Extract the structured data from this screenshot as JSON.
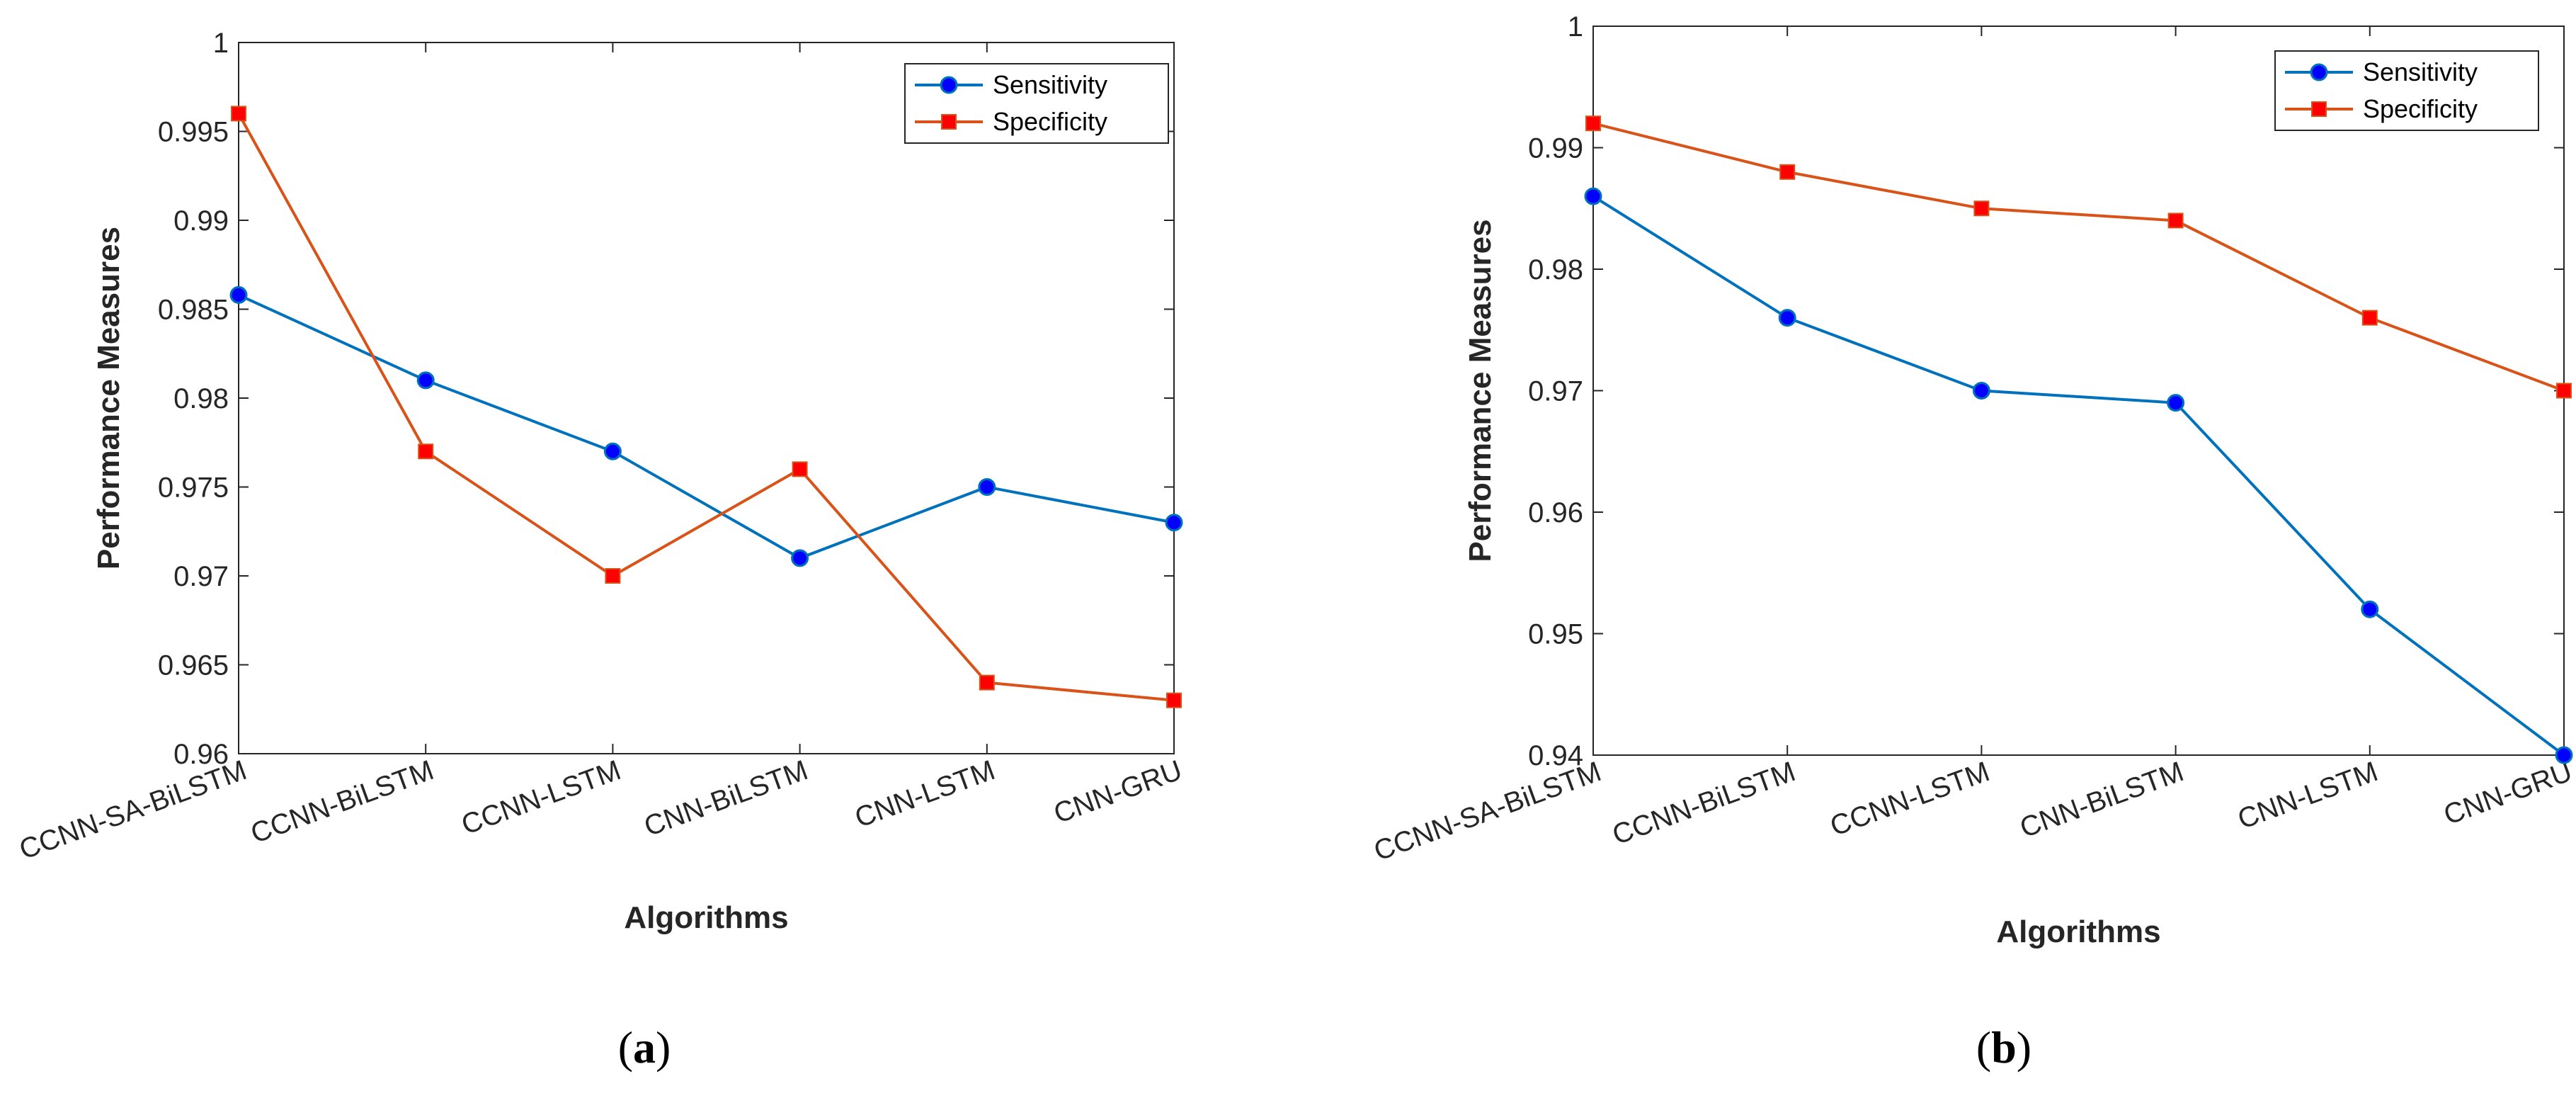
{
  "colors": {
    "sensitivity_line": "#0072BD",
    "sensitivity_marker": "#0000FF",
    "specificity_line": "#D95319",
    "specificity_marker": "#FF0000",
    "axis": "#262626"
  },
  "chart_data": [
    {
      "type": "line",
      "panel": {
        "open": "(",
        "letter": "a",
        "close": ")"
      },
      "xlabel": "Algorithms",
      "ylabel": "Performance Measures",
      "categories": [
        "CCNN-SA-BiLSTM",
        "CCNN-BiLSTM",
        "CCNN-LSTM",
        "CNN-BiLSTM",
        "CNN-LSTM",
        "CNN-GRU"
      ],
      "ylim": [
        0.96,
        1
      ],
      "yticks": [
        "0.96",
        "0.965",
        "0.97",
        "0.975",
        "0.98",
        "0.985",
        "0.99",
        "0.995",
        "1"
      ],
      "legend_position": "top-right",
      "series": [
        {
          "name": "Sensitivity",
          "marker": "circle",
          "values": [
            0.9858,
            0.981,
            0.977,
            0.971,
            0.975,
            0.973
          ]
        },
        {
          "name": "Specificity",
          "marker": "square",
          "values": [
            0.996,
            0.977,
            0.97,
            0.976,
            0.964,
            0.963
          ]
        }
      ]
    },
    {
      "type": "line",
      "panel": {
        "open": "(",
        "letter": "b",
        "close": ")"
      },
      "xlabel": "Algorithms",
      "ylabel": "Performance Measures",
      "categories": [
        "CCNN-SA-BiLSTM",
        "CCNN-BiLSTM",
        "CCNN-LSTM",
        "CNN-BiLSTM",
        "CNN-LSTM",
        "CNN-GRU"
      ],
      "ylim": [
        0.94,
        1
      ],
      "yticks": [
        "0.94",
        "0.95",
        "0.96",
        "0.97",
        "0.98",
        "0.99",
        "1"
      ],
      "legend_position": "top-right",
      "series": [
        {
          "name": "Sensitivity",
          "marker": "circle",
          "values": [
            0.986,
            0.976,
            0.97,
            0.969,
            0.952,
            0.94
          ]
        },
        {
          "name": "Specificity",
          "marker": "square",
          "values": [
            0.992,
            0.988,
            0.985,
            0.984,
            0.976,
            0.97
          ]
        }
      ]
    }
  ]
}
